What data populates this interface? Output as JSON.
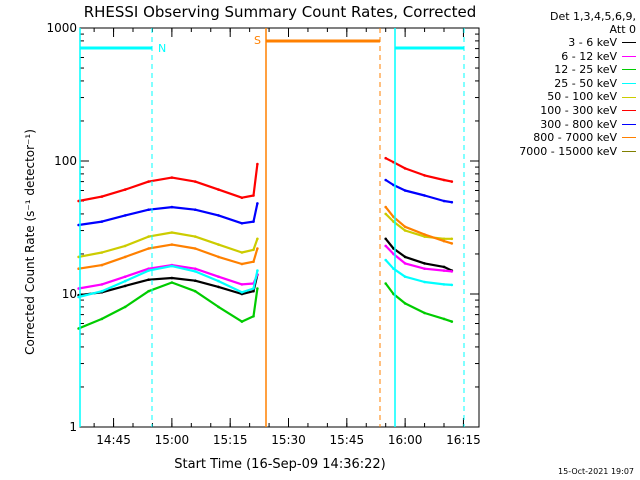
{
  "chart_data": {
    "type": "line",
    "title": "RHESSI Observing Summary Count Rates, Corrected",
    "ylabel": "Corrected Count Rate (s⁻¹ detector⁻¹)",
    "xlabel": "Start Time (16-Sep-09 14:36:22)",
    "y_scale": "log",
    "ylim": [
      1,
      1000
    ],
    "y_ticks": [
      "1",
      "10",
      "100",
      "1000"
    ],
    "x_ticks": [
      "14:45",
      "15:00",
      "15:15",
      "15:30",
      "15:45",
      "16:00",
      "16:15"
    ],
    "legend_header": [
      "Det 1,3,4,5,6,9,",
      "Att 0"
    ],
    "legend_placement": "right",
    "series": [
      {
        "name": "3 - 6 keV",
        "color": "#000000",
        "x": [
          "14:36",
          "14:42",
          "14:48",
          "14:54",
          "15:00",
          "15:06",
          "15:12",
          "15:18",
          "15:21",
          "15:22",
          "15:55",
          "15:57",
          "16:00",
          "16:05",
          "16:10",
          "16:12"
        ],
        "values": [
          9.8,
          10.3,
          11.5,
          12.8,
          13.2,
          12.6,
          11.3,
          10.0,
          10.5,
          14,
          26,
          22,
          19,
          17,
          16,
          15
        ]
      },
      {
        "name": "6 - 12 keV",
        "color": "#ff00ff",
        "x": [
          "14:36",
          "14:42",
          "14:48",
          "14:54",
          "15:00",
          "15:06",
          "15:12",
          "15:18",
          "15:21",
          "15:22",
          "15:55",
          "15:57",
          "16:00",
          "16:05",
          "16:10",
          "16:12"
        ],
        "values": [
          11,
          11.8,
          13.5,
          15.5,
          16.5,
          15.5,
          13.5,
          11.8,
          12,
          14,
          23,
          20,
          17,
          15.5,
          15,
          14.8
        ]
      },
      {
        "name": "12 - 25 keV",
        "color": "#00cc00",
        "x": [
          "14:36",
          "14:42",
          "14:48",
          "14:54",
          "15:00",
          "15:06",
          "15:12",
          "15:18",
          "15:21",
          "15:22",
          "15:55",
          "15:57",
          "16:00",
          "16:05",
          "16:10",
          "16:12"
        ],
        "values": [
          5.5,
          6.5,
          8,
          10.5,
          12.2,
          10.5,
          8,
          6.2,
          6.8,
          11,
          12,
          10,
          8.5,
          7.2,
          6.5,
          6.2
        ]
      },
      {
        "name": "25 - 50 keV",
        "color": "#00ffff",
        "x": [
          "14:36",
          "14:42",
          "14:48",
          "14:54",
          "15:00",
          "15:06",
          "15:12",
          "15:18",
          "15:21",
          "15:22",
          "15:55",
          "15:57",
          "16:00",
          "16:05",
          "16:10",
          "16:12"
        ],
        "values": [
          9.5,
          10.5,
          12.5,
          15,
          16.2,
          14.8,
          12.5,
          10.3,
          11,
          15,
          18,
          15.5,
          13.5,
          12.3,
          11.8,
          11.7
        ]
      },
      {
        "name": "50 - 100 keV",
        "color": "#cccc00",
        "x": [
          "14:36",
          "14:42",
          "14:48",
          "14:54",
          "15:00",
          "15:06",
          "15:12",
          "15:18",
          "15:21",
          "15:22",
          "15:55",
          "15:57",
          "16:00",
          "16:05",
          "16:10",
          "16:12"
        ],
        "values": [
          19,
          20.5,
          23,
          27,
          29,
          27,
          23.5,
          20.5,
          21.5,
          26,
          40,
          35,
          30,
          27,
          26,
          26
        ]
      },
      {
        "name": "100 - 300 keV",
        "color": "#ff0000",
        "x": [
          "14:36",
          "14:42",
          "14:48",
          "14:54",
          "15:00",
          "15:06",
          "15:12",
          "15:18",
          "15:21",
          "15:22",
          "15:55",
          "15:57",
          "16:00",
          "16:05",
          "16:10",
          "16:12"
        ],
        "values": [
          50,
          54,
          61,
          70,
          75,
          70,
          61,
          53,
          55,
          95,
          105,
          98,
          88,
          78,
          72,
          70
        ]
      },
      {
        "name": "300 - 800 keV",
        "color": "#0000ff",
        "x": [
          "14:36",
          "14:42",
          "14:48",
          "14:54",
          "15:00",
          "15:06",
          "15:12",
          "15:18",
          "15:21",
          "15:22",
          "15:55",
          "15:57",
          "16:00",
          "16:05",
          "16:10",
          "16:12"
        ],
        "values": [
          33,
          35,
          39,
          43,
          45,
          43,
          39,
          34,
          35,
          48,
          72,
          66,
          60,
          55,
          50,
          49
        ]
      },
      {
        "name": "800 - 7000 keV",
        "color": "#ff8000",
        "x": [
          "14:36",
          "14:42",
          "14:48",
          "14:54",
          "15:00",
          "15:06",
          "15:12",
          "15:18",
          "15:21",
          "15:22",
          "15:55",
          "15:57",
          "16:00",
          "16:05",
          "16:10",
          "16:12"
        ],
        "values": [
          15.5,
          16.5,
          19,
          22,
          23.5,
          22,
          19,
          16.8,
          17.5,
          22,
          45,
          38,
          32,
          28,
          25,
          24
        ]
      },
      {
        "name": "7000 - 15000 keV",
        "color": "#808000",
        "x": [],
        "values": []
      }
    ],
    "annotations": [
      {
        "text": "N",
        "color": "#00ffff"
      },
      {
        "text": "S",
        "color": "#ff8000"
      }
    ],
    "footer": "15-Oct-2021 19:07"
  }
}
